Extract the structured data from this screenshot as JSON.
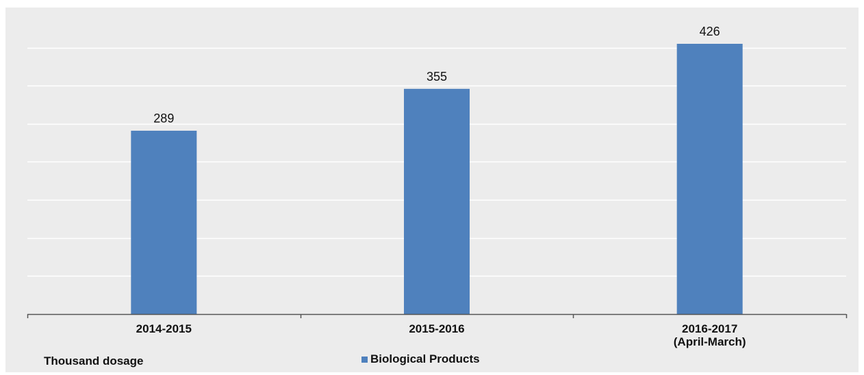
{
  "chart_data": {
    "type": "bar",
    "categories": [
      [
        "2014-2015"
      ],
      [
        "2015-2016"
      ],
      [
        "2016-2017",
        "(April-March)"
      ]
    ],
    "series": [
      {
        "name": "Biological Products",
        "values": [
          289,
          355,
          426
        ],
        "color": "#4f81bd"
      }
    ],
    "ylabel": "Thousand dosage",
    "ylim": [
      0,
      490
    ],
    "y_gridlines": [
      60,
      120,
      180,
      240,
      300,
      360,
      420
    ],
    "grid": true,
    "y_tick_labels_shown": false,
    "legend_position": "bottom",
    "data_labels": true
  },
  "colors": {
    "panel_background": "#ececec",
    "gridline": "#ffffff",
    "axis": "#555555",
    "bar": "#4f81bd"
  }
}
